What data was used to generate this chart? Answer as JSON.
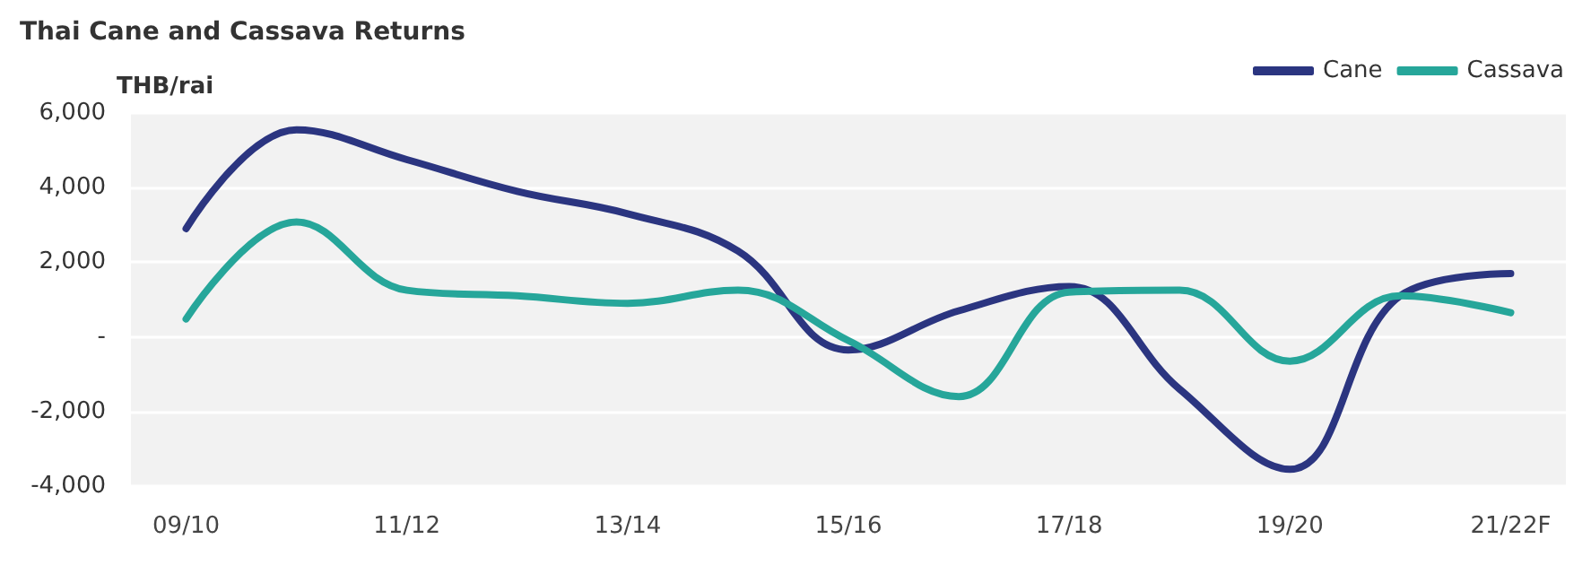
{
  "chart_data": {
    "type": "line",
    "title": "Thai Cane and Cassava Returns",
    "ylabel": "THB/rai",
    "categories": [
      "09/10",
      null,
      "11/12",
      null,
      "13/14",
      null,
      "15/16",
      null,
      "17/18",
      null,
      "19/20",
      null,
      "21/22F"
    ],
    "series": [
      {
        "name": "Cane",
        "color": "#2b3580",
        "values": [
          2900,
          5550,
          4750,
          3900,
          3300,
          2300,
          -350,
          700,
          1350,
          -1400,
          -3550,
          1100,
          1700
        ]
      },
      {
        "name": "Cassava",
        "color": "#26a69a",
        "values": [
          480,
          3080,
          1250,
          1100,
          900,
          1250,
          -100,
          -1600,
          1200,
          1250,
          -650,
          1100,
          650
        ]
      }
    ],
    "ylim": [
      -4000,
      6000
    ],
    "yticks": [
      {
        "value": -4000,
        "label": "-4,000"
      },
      {
        "value": -2000,
        "label": "-2,000"
      },
      {
        "value": 0,
        "label": "-"
      },
      {
        "value": 2000,
        "label": "2,000"
      },
      {
        "value": 4000,
        "label": "4,000"
      },
      {
        "value": 6000,
        "label": "6,000"
      }
    ],
    "grid": "y",
    "legend": "top right",
    "marker": "none",
    "line_style": "solid"
  }
}
